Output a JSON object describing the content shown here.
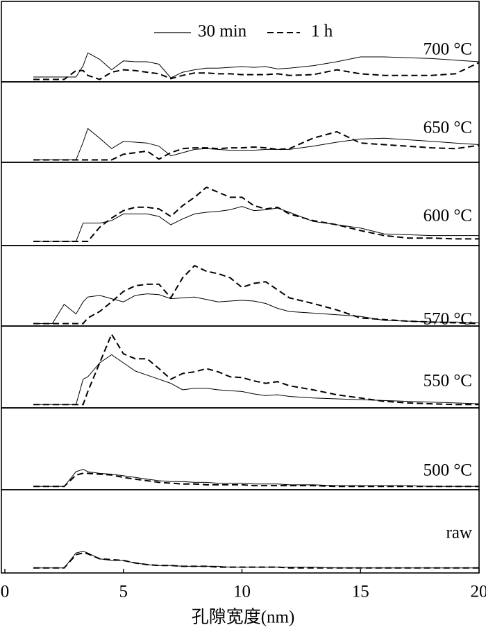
{
  "chart_data": {
    "type": "line",
    "xlabel": "孔隙宽度(nm)",
    "xlim": [
      0,
      20
    ],
    "xticks": [
      0,
      5,
      10,
      15,
      20
    ],
    "x": [
      1.2,
      2,
      2.5,
      3,
      3.3,
      3.5,
      4,
      4.5,
      5,
      5.5,
      6,
      6.5,
      7,
      7.5,
      8,
      8.5,
      9,
      9.5,
      10,
      10.5,
      11,
      11.5,
      12,
      13,
      14,
      15,
      16,
      17,
      18,
      19,
      20
    ],
    "panels": [
      {
        "label": "700 °C",
        "ylim": [
          0,
          100
        ],
        "series": [
          {
            "name": "30 min",
            "dashed": false,
            "color": "#000000",
            "values": [
              6,
              6,
              6,
              6,
              20,
              36,
              28,
              15,
              26,
              25,
              25,
              22,
              5,
              12,
              15,
              17,
              17,
              18,
              19,
              18,
              19,
              16,
              17,
              20,
              25,
              31,
              31,
              30,
              29,
              27,
              25
            ]
          },
          {
            "name": "1 h",
            "dashed": true,
            "color": "#000000",
            "values": [
              3,
              3,
              3,
              14,
              14,
              8,
              3,
              12,
              15,
              14,
              12,
              10,
              4,
              8,
              11,
              11,
              10,
              10,
              9,
              9,
              9,
              10,
              8,
              9,
              15,
              10,
              8,
              8,
              8,
              10,
              24
            ]
          }
        ]
      },
      {
        "label": "650 °C",
        "ylim": [
          0,
          100
        ],
        "series": [
          {
            "dashed": false,
            "color": "#000000",
            "values": [
              3,
              3,
              3,
              3,
              25,
              42,
              30,
              17,
              26,
              25,
              24,
              20,
              8,
              12,
              16,
              17,
              16,
              15,
              15,
              15,
              16,
              16,
              16,
              20,
              25,
              29,
              30,
              28,
              26,
              24,
              22
            ]
          },
          {
            "dashed": true,
            "color": "#000000",
            "values": [
              3,
              3,
              3,
              3,
              3,
              3,
              3,
              3,
              10,
              12,
              14,
              4,
              12,
              17,
              18,
              18,
              17,
              18,
              18,
              19,
              18,
              16,
              17,
              30,
              38,
              24,
              22,
              20,
              18,
              17,
              21
            ]
          }
        ]
      },
      {
        "label": "600 °C",
        "ylim": [
          0,
          100
        ],
        "series": [
          {
            "dashed": false,
            "color": "#000000",
            "values": [
              5,
              5,
              5,
              5,
              27,
              27,
              27,
              30,
              38,
              38,
              38,
              35,
              25,
              32,
              38,
              40,
              41,
              43,
              47,
              42,
              43,
              45,
              40,
              29,
              25,
              21,
              14,
              13,
              12,
              12,
              12
            ]
          },
          {
            "dashed": true,
            "color": "#000000",
            "values": [
              5,
              5,
              5,
              5,
              5,
              5,
              22,
              33,
              42,
              46,
              46,
              44,
              35,
              48,
              58,
              70,
              64,
              58,
              58,
              48,
              44,
              46,
              38,
              30,
              25,
              18,
              12,
              9,
              9,
              8,
              8
            ]
          }
        ]
      },
      {
        "label": "570 °C",
        "ylim": [
          0,
          100
        ],
        "series": [
          {
            "dashed": false,
            "color": "#000000",
            "values": [
              3,
              3,
              27,
              15,
              30,
              36,
              38,
              34,
              30,
              38,
              40,
              39,
              34,
              35,
              36,
              33,
              30,
              31,
              32,
              31,
              28,
              22,
              18,
              16,
              14,
              12,
              7,
              6,
              5,
              5,
              4
            ]
          },
          {
            "dashed": true,
            "color": "#000000",
            "values": [
              3,
              3,
              3,
              3,
              3,
              10,
              18,
              30,
              43,
              50,
              52,
              52,
              35,
              60,
              75,
              68,
              65,
              60,
              48,
              53,
              55,
              45,
              35,
              28,
              20,
              10,
              8,
              6,
              5,
              4,
              3
            ]
          }
        ]
      },
      {
        "label": "550 °C",
        "ylim": [
          0,
          100
        ],
        "series": [
          {
            "dashed": false,
            "color": "#000000",
            "values": [
              4,
              4,
              4,
              4,
              35,
              38,
              55,
              65,
              55,
              45,
              40,
              35,
              30,
              22,
              24,
              24,
              22,
              21,
              20,
              17,
              15,
              16,
              14,
              12,
              11,
              10,
              9,
              8,
              7,
              6,
              5
            ]
          },
          {
            "dashed": true,
            "color": "#000000",
            "values": [
              4,
              4,
              4,
              4,
              4,
              20,
              55,
              90,
              66,
              60,
              60,
              48,
              35,
              42,
              44,
              48,
              44,
              38,
              37,
              33,
              30,
              32,
              27,
              22,
              16,
              12,
              8,
              6,
              5,
              4,
              4
            ]
          }
        ]
      },
      {
        "label": "500 °C",
        "ylim": [
          0,
          100
        ],
        "series": [
          {
            "dashed": false,
            "color": "#000000",
            "values": [
              4,
              4,
              4,
              22,
              25,
              22,
              20,
              19,
              17,
              15,
              13,
              11,
              10,
              10,
              9,
              9,
              8,
              8,
              8,
              7,
              7,
              7,
              6,
              6,
              5,
              5,
              5,
              5,
              4,
              4,
              4
            ]
          },
          {
            "dashed": true,
            "color": "#000000",
            "values": [
              4,
              4,
              4,
              18,
              20,
              20,
              19,
              18,
              15,
              13,
              11,
              9,
              8,
              7,
              7,
              6,
              6,
              6,
              6,
              5,
              5,
              5,
              5,
              5,
              4,
              4,
              4,
              4,
              4,
              4,
              4
            ]
          }
        ]
      },
      {
        "label": "raw",
        "ylim": [
          0,
          100
        ],
        "series": [
          {
            "dashed": false,
            "color": "#000000",
            "values": [
              6,
              6,
              6,
              24,
              26,
              24,
              17,
              15,
              15,
              12,
              10,
              9,
              9,
              8,
              8,
              8,
              8,
              7,
              7,
              7,
              7,
              7,
              7,
              7,
              6,
              6,
              6,
              6,
              6,
              6,
              6
            ]
          },
          {
            "dashed": true,
            "color": "#000000",
            "values": [
              6,
              6,
              6,
              22,
              24,
              23,
              17,
              16,
              15,
              12,
              10,
              9,
              9,
              8,
              8,
              8,
              7,
              7,
              7,
              7,
              7,
              7,
              6,
              6,
              6,
              6,
              6,
              6,
              6,
              6,
              6
            ]
          }
        ]
      }
    ]
  }
}
